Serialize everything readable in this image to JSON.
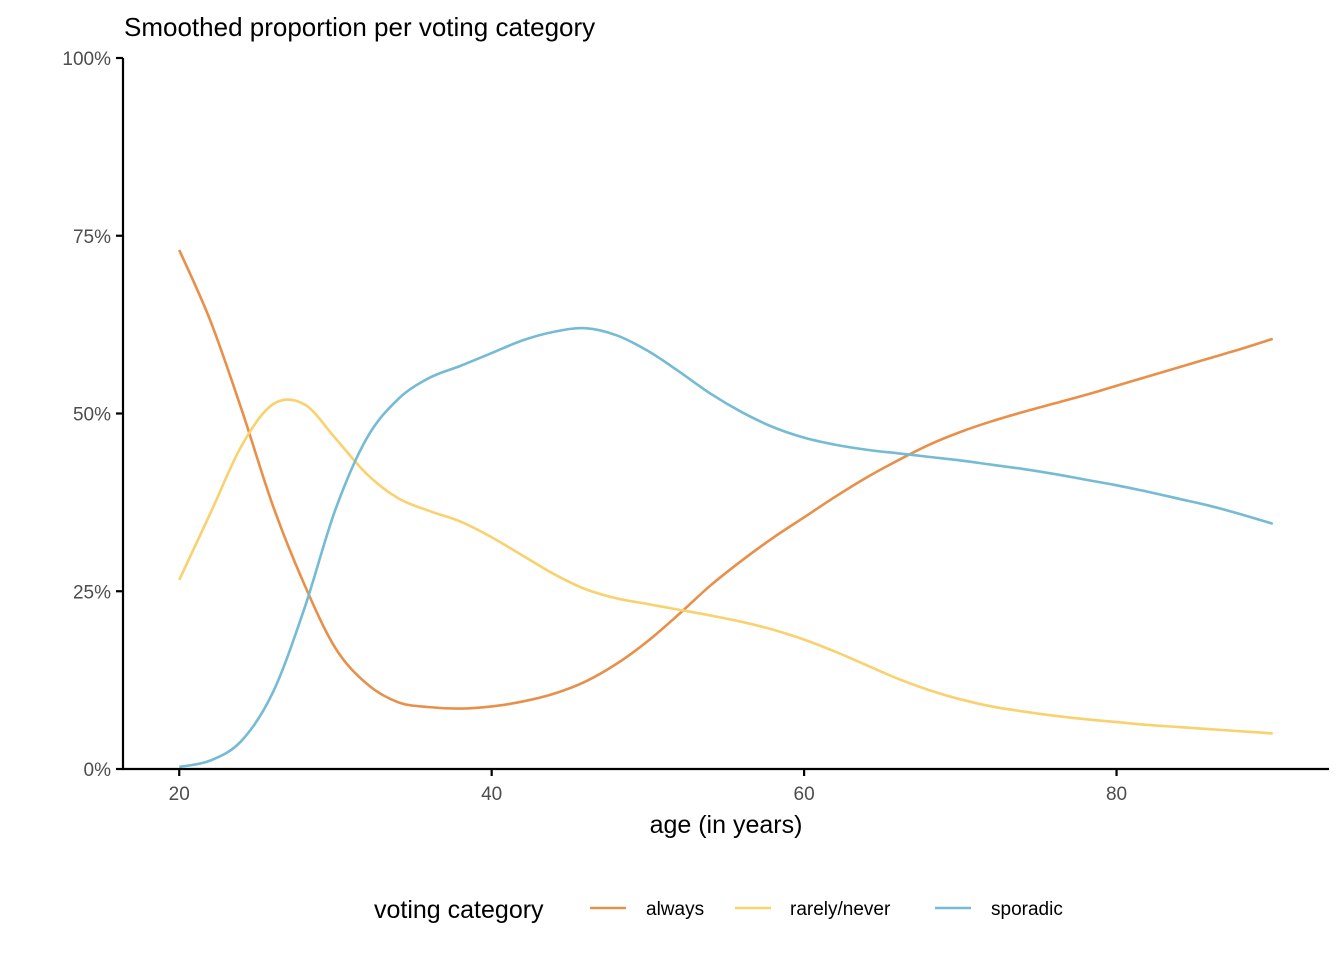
{
  "chart_data": {
    "type": "line",
    "title": "Smoothed proportion per voting category",
    "xlabel": "age (in years)",
    "ylabel": "",
    "xlim": [
      16.4,
      93.6
    ],
    "ylim": [
      0,
      1
    ],
    "x_ticks": [
      20,
      40,
      60,
      80
    ],
    "x_tick_labels": [
      "20",
      "40",
      "60",
      "80"
    ],
    "y_ticks": [
      0,
      0.25,
      0.5,
      0.75,
      1.0
    ],
    "y_tick_labels": [
      "0%",
      "25%",
      "50%",
      "75%",
      "100%"
    ],
    "grid": false,
    "legend": {
      "title": "voting category",
      "position": "bottom"
    },
    "x": [
      20,
      22,
      24,
      26,
      28,
      30,
      32,
      34,
      36,
      38,
      40,
      42,
      44,
      46,
      48,
      50,
      52,
      54,
      56,
      58,
      60,
      62,
      64,
      66,
      68,
      70,
      72,
      74,
      76,
      78,
      80,
      82,
      84,
      86,
      88,
      90
    ],
    "series": [
      {
        "name": "always",
        "color": "#E8904A",
        "values": [
          0.73,
          0.63,
          0.505,
          0.37,
          0.26,
          0.17,
          0.12,
          0.094,
          0.087,
          0.085,
          0.088,
          0.095,
          0.106,
          0.123,
          0.148,
          0.18,
          0.218,
          0.258,
          0.293,
          0.325,
          0.354,
          0.383,
          0.41,
          0.434,
          0.456,
          0.474,
          0.489,
          0.502,
          0.514,
          0.526,
          0.539,
          0.552,
          0.565,
          0.578,
          0.591,
          0.605
        ]
      },
      {
        "name": "rarely/never",
        "color": "#F9D16E",
        "values": [
          0.266,
          0.36,
          0.455,
          0.513,
          0.513,
          0.465,
          0.415,
          0.381,
          0.363,
          0.348,
          0.326,
          0.3,
          0.274,
          0.253,
          0.24,
          0.232,
          0.224,
          0.216,
          0.207,
          0.196,
          0.182,
          0.165,
          0.146,
          0.127,
          0.111,
          0.098,
          0.088,
          0.081,
          0.075,
          0.07,
          0.066,
          0.062,
          0.059,
          0.056,
          0.053,
          0.05
        ]
      },
      {
        "name": "sporadic",
        "color": "#74BBD3",
        "values": [
          0.003,
          0.012,
          0.04,
          0.108,
          0.225,
          0.365,
          0.465,
          0.52,
          0.55,
          0.567,
          0.585,
          0.603,
          0.615,
          0.62,
          0.61,
          0.588,
          0.559,
          0.528,
          0.502,
          0.481,
          0.466,
          0.456,
          0.449,
          0.444,
          0.439,
          0.434,
          0.428,
          0.422,
          0.415,
          0.407,
          0.399,
          0.39,
          0.38,
          0.37,
          0.358,
          0.345
        ]
      }
    ]
  }
}
